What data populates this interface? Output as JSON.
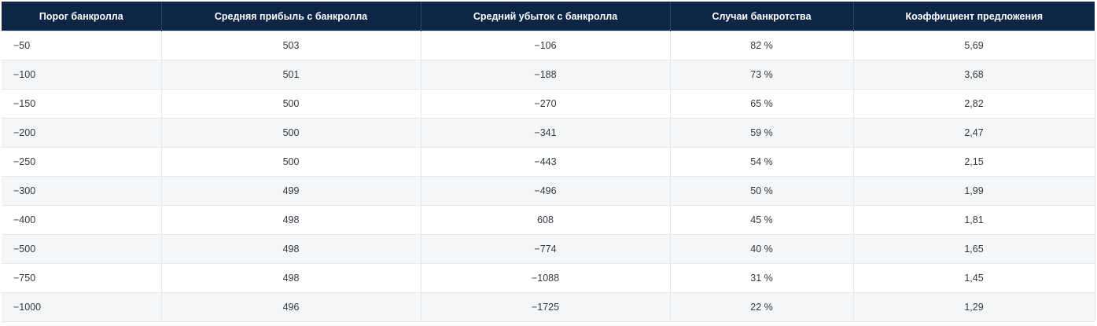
{
  "table": {
    "headers": [
      "Порог банкролла",
      "Средняя прибыль с банкролла",
      "Средний убыток с банкролла",
      "Случаи банкротства",
      "Коэффициент предложения"
    ],
    "rows": [
      [
        "−50",
        "503",
        "−106",
        "82 %",
        "5,69"
      ],
      [
        "−100",
        "501",
        "−188",
        "73 %",
        "3,68"
      ],
      [
        "−150",
        "500",
        "−270",
        "65 %",
        "2,82"
      ],
      [
        "−200",
        "500",
        "−341",
        "59 %",
        "2,47"
      ],
      [
        "−250",
        "500",
        "−443",
        "54 %",
        "2,15"
      ],
      [
        "−300",
        "499",
        "−496",
        "50 %",
        "1,99"
      ],
      [
        "−400",
        "498",
        "608",
        "45 %",
        "1,81"
      ],
      [
        "−500",
        "498",
        "−774",
        "40 %",
        "1,65"
      ],
      [
        "−750",
        "498",
        "−1088",
        "31 %",
        "1,45"
      ],
      [
        "−1000",
        "496",
        "−1725",
        "22 %",
        "1,29"
      ]
    ]
  },
  "colors": {
    "header_bg": "#0d2646",
    "stripe_bg": "#f5f6f8"
  }
}
